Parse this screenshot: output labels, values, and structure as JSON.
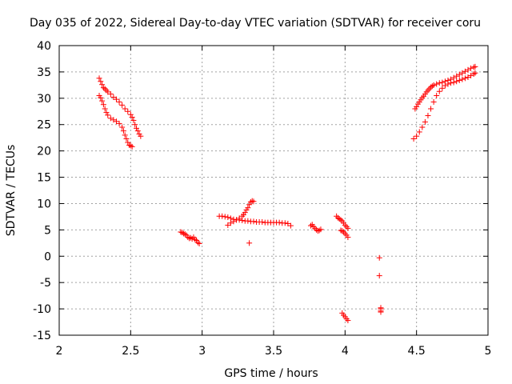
{
  "chart_data": {
    "type": "scatter",
    "title": "Day 035 of 2022, Sidereal Day-to-day VTEC variation (SDTVAR) for receiver coru",
    "xlabel": "GPS time / hours",
    "ylabel": "SDTVAR / TECUs",
    "xlim": [
      2,
      5
    ],
    "ylim": [
      -15,
      40
    ],
    "grid": true,
    "marker": "plus",
    "color": "#ff0000",
    "xticks": [
      2,
      2.5,
      3,
      3.5,
      4,
      4.5,
      5
    ],
    "xtick_labels": [
      "2",
      "2.5",
      "3",
      "3.5",
      "4",
      "4.5",
      "5"
    ],
    "yticks": [
      -15,
      -10,
      -5,
      0,
      5,
      10,
      15,
      20,
      25,
      30,
      35,
      40
    ],
    "ytick_labels": [
      "-15",
      "-10",
      "-5",
      "0",
      "5",
      "10",
      "15",
      "20",
      "25",
      "30",
      "35",
      "40"
    ],
    "series": [
      {
        "name": "SDTVAR",
        "x": [
          2.28,
          2.29,
          2.3,
          2.31,
          2.32,
          2.33,
          2.34,
          2.36,
          2.38,
          2.4,
          2.42,
          2.44,
          2.46,
          2.48,
          2.5,
          2.51,
          2.52,
          2.53,
          2.54,
          2.55,
          2.56,
          2.57,
          2.28,
          2.29,
          2.3,
          2.31,
          2.32,
          2.33,
          2.34,
          2.36,
          2.38,
          2.4,
          2.42,
          2.44,
          2.45,
          2.46,
          2.47,
          2.48,
          2.49,
          2.5,
          2.51,
          2.85,
          2.86,
          2.87,
          2.88,
          2.89,
          2.9,
          2.91,
          2.92,
          2.93,
          2.94,
          2.95,
          2.96,
          2.97,
          2.98,
          3.12,
          3.14,
          3.16,
          3.18,
          3.2,
          3.22,
          3.24,
          3.26,
          3.28,
          3.3,
          3.32,
          3.34,
          3.36,
          3.38,
          3.4,
          3.42,
          3.44,
          3.46,
          3.48,
          3.5,
          3.52,
          3.54,
          3.56,
          3.58,
          3.6,
          3.62,
          3.18,
          3.2,
          3.22,
          3.24,
          3.26,
          3.28,
          3.29,
          3.3,
          3.31,
          3.32,
          3.33,
          3.34,
          3.35,
          3.36,
          3.33,
          3.76,
          3.77,
          3.78,
          3.79,
          3.8,
          3.81,
          3.82,
          3.83,
          3.94,
          3.95,
          3.96,
          3.97,
          3.98,
          3.99,
          4.0,
          4.01,
          4.02,
          3.97,
          3.98,
          3.99,
          4.0,
          4.01,
          4.02,
          3.98,
          3.99,
          4.0,
          4.01,
          4.02,
          4.24,
          4.24,
          4.25,
          4.25,
          4.25,
          4.25,
          4.49,
          4.5,
          4.51,
          4.52,
          4.53,
          4.54,
          4.55,
          4.56,
          4.57,
          4.58,
          4.59,
          4.6,
          4.61,
          4.62,
          4.64,
          4.66,
          4.68,
          4.7,
          4.72,
          4.74,
          4.76,
          4.78,
          4.8,
          4.82,
          4.84,
          4.86,
          4.88,
          4.9,
          4.91,
          4.48,
          4.5,
          4.52,
          4.54,
          4.56,
          4.58,
          4.6,
          4.62,
          4.64,
          4.66,
          4.68,
          4.7,
          4.72,
          4.74,
          4.76,
          4.78,
          4.8,
          4.82,
          4.84,
          4.86,
          4.88,
          4.9,
          4.91
        ],
        "y": [
          33.8,
          33.2,
          32.6,
          32.0,
          31.8,
          31.5,
          31.2,
          30.8,
          30.2,
          29.8,
          29.3,
          28.7,
          28.0,
          27.5,
          26.9,
          26.4,
          25.8,
          25.0,
          24.3,
          23.8,
          23.2,
          22.8,
          30.5,
          30.1,
          29.5,
          28.8,
          28.0,
          27.3,
          26.8,
          26.2,
          25.9,
          25.6,
          25.2,
          24.5,
          23.8,
          23.0,
          22.3,
          21.6,
          21.1,
          21.0,
          20.8,
          4.6,
          4.5,
          4.3,
          4.2,
          4.0,
          3.6,
          3.4,
          3.5,
          3.3,
          3.6,
          3.2,
          3.0,
          2.6,
          2.4,
          7.6,
          7.6,
          7.5,
          7.4,
          7.2,
          7.0,
          6.9,
          6.9,
          6.8,
          6.7,
          6.7,
          6.6,
          6.6,
          6.5,
          6.5,
          6.5,
          6.4,
          6.4,
          6.4,
          6.4,
          6.4,
          6.4,
          6.3,
          6.3,
          6.2,
          5.8,
          5.9,
          6.3,
          6.6,
          6.9,
          7.2,
          7.6,
          7.9,
          8.3,
          8.8,
          9.2,
          9.8,
          10.3,
          10.5,
          10.4,
          2.5,
          5.8,
          6.0,
          5.6,
          5.3,
          5.0,
          4.8,
          4.9,
          5.1,
          7.6,
          7.3,
          7.1,
          6.9,
          6.7,
          6.3,
          5.9,
          5.6,
          5.3,
          4.9,
          4.8,
          4.6,
          4.3,
          4.0,
          3.6,
          -10.8,
          -11.2,
          -11.5,
          -11.9,
          -12.2,
          -0.3,
          -3.7,
          -9.8,
          -10.0,
          -10.4,
          -10.6,
          28.0,
          28.4,
          28.9,
          29.3,
          29.7,
          30.1,
          30.4,
          30.8,
          31.2,
          31.5,
          31.8,
          32.1,
          32.3,
          32.5,
          32.7,
          32.9,
          33.0,
          33.2,
          33.4,
          33.6,
          33.9,
          34.2,
          34.5,
          34.8,
          35.1,
          35.4,
          35.7,
          35.9,
          36.0,
          22.3,
          22.8,
          23.6,
          24.5,
          25.5,
          26.7,
          28.0,
          29.3,
          30.5,
          31.3,
          31.9,
          32.4,
          32.7,
          32.9,
          33.0,
          33.2,
          33.4,
          33.6,
          33.8,
          34.0,
          34.3,
          34.6,
          34.8
        ]
      }
    ]
  }
}
